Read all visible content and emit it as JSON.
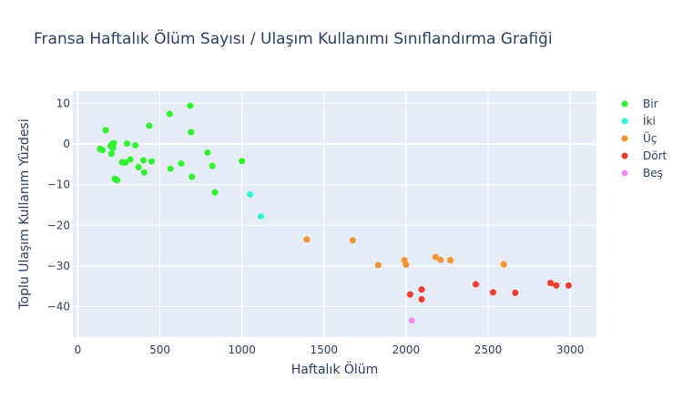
{
  "chart_data": {
    "type": "scatter",
    "title": "Fransa Haftalık Ölüm Sayısı / Ulaşım Kullanımı Sınıflandırma Grafiği",
    "xlabel": "Haftalık Ölüm",
    "ylabel": "Toplu Ulaşım Kullanım Yüzdesi",
    "xlim": [
      -30,
      3160
    ],
    "ylim": [
      -47.5,
      13
    ],
    "x_ticks": [
      0,
      500,
      1000,
      1500,
      2000,
      2500,
      3000
    ],
    "x_tick_labels": [
      "0",
      "500",
      "1000",
      "1500",
      "2000",
      "2500",
      "3000"
    ],
    "y_ticks": [
      10,
      0,
      -10,
      -20,
      -30,
      -40
    ],
    "y_tick_labels": [
      "10",
      "0",
      "−10",
      "−20",
      "−30",
      "−40"
    ],
    "legend_position": "top-right",
    "series": [
      {
        "name": "Bir",
        "color": "#2ef52e",
        "points": [
          [
            135,
            -1.2
          ],
          [
            150,
            -1.5
          ],
          [
            170,
            3.4
          ],
          [
            200,
            -0.5
          ],
          [
            205,
            -2.4
          ],
          [
            210,
            0.0
          ],
          [
            215,
            -1.0
          ],
          [
            220,
            0.2
          ],
          [
            225,
            -8.6
          ],
          [
            240,
            -8.9
          ],
          [
            270,
            -4.5
          ],
          [
            290,
            -4.6
          ],
          [
            300,
            0.1
          ],
          [
            320,
            -3.8
          ],
          [
            350,
            -0.3
          ],
          [
            370,
            -5.7
          ],
          [
            400,
            -4.0
          ],
          [
            405,
            -7.0
          ],
          [
            435,
            4.5
          ],
          [
            450,
            -4.3
          ],
          [
            560,
            7.4
          ],
          [
            565,
            -6.1
          ],
          [
            630,
            -4.8
          ],
          [
            685,
            9.4
          ],
          [
            690,
            2.9
          ],
          [
            695,
            -8.1
          ],
          [
            790,
            -2.1
          ],
          [
            820,
            -5.4
          ],
          [
            835,
            -11.9
          ],
          [
            1000,
            -4.2
          ]
        ]
      },
      {
        "name": "İki",
        "color": "#33f5d5",
        "points": [
          [
            1050,
            -12.4
          ],
          [
            1115,
            -17.8
          ]
        ]
      },
      {
        "name": "Üç",
        "color": "#f5942e",
        "points": [
          [
            1395,
            -23.5
          ],
          [
            1675,
            -23.7
          ],
          [
            1830,
            -29.8
          ],
          [
            1990,
            -28.6
          ],
          [
            2000,
            -29.7
          ],
          [
            2180,
            -27.8
          ],
          [
            2210,
            -28.5
          ],
          [
            2270,
            -28.6
          ],
          [
            2595,
            -29.6
          ]
        ]
      },
      {
        "name": "Dört",
        "color": "#f03b30",
        "points": [
          [
            2025,
            -37.0
          ],
          [
            2095,
            -35.8
          ],
          [
            2095,
            -38.2
          ],
          [
            2425,
            -34.5
          ],
          [
            2530,
            -36.5
          ],
          [
            2665,
            -36.6
          ],
          [
            2880,
            -34.2
          ],
          [
            2915,
            -34.8
          ],
          [
            2990,
            -34.8
          ]
        ]
      },
      {
        "name": "Beş",
        "color": "#f78cf7",
        "points": [
          [
            2035,
            -43.4
          ]
        ]
      }
    ]
  }
}
